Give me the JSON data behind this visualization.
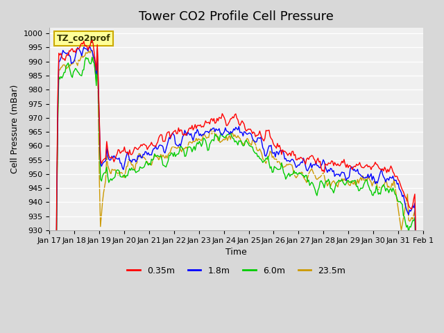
{
  "title": "Tower CO2 Profile Cell Pressure",
  "xlabel": "Time",
  "ylabel": "Cell Pressure (mBar)",
  "ylim": [
    930,
    1002
  ],
  "yticks": [
    930,
    935,
    940,
    945,
    950,
    955,
    960,
    965,
    970,
    975,
    980,
    985,
    990,
    995,
    1000
  ],
  "xtick_labels": [
    "Jan 17",
    "Jan 18",
    "Jan 19",
    "Jan 20",
    "Jan 21",
    "Jan 22",
    "Jan 23",
    "Jan 24",
    "Jan 25",
    "Jan 26",
    "Jan 27",
    "Jan 28",
    "Jan 29",
    "Jan 30",
    "Jan 31",
    "Feb 1"
  ],
  "legend_label": "TZ_co2prof",
  "series_labels": [
    "0.35m",
    "1.8m",
    "6.0m",
    "23.5m"
  ],
  "series_colors": [
    "#ff0000",
    "#0000ff",
    "#00cc00",
    "#cc9900"
  ],
  "fig_bg_color": "#d8d8d8",
  "plot_bg_color": "#f0f0f0",
  "legend_box_color": "#ffff99",
  "legend_box_edge": "#ccaa00",
  "title_fontsize": 13,
  "axis_label_fontsize": 9,
  "tick_fontsize": 8,
  "linewidth": 1.0,
  "n_points": 360,
  "seed": 42,
  "xlim": [
    0,
    15
  ],
  "n_xticks": 16
}
